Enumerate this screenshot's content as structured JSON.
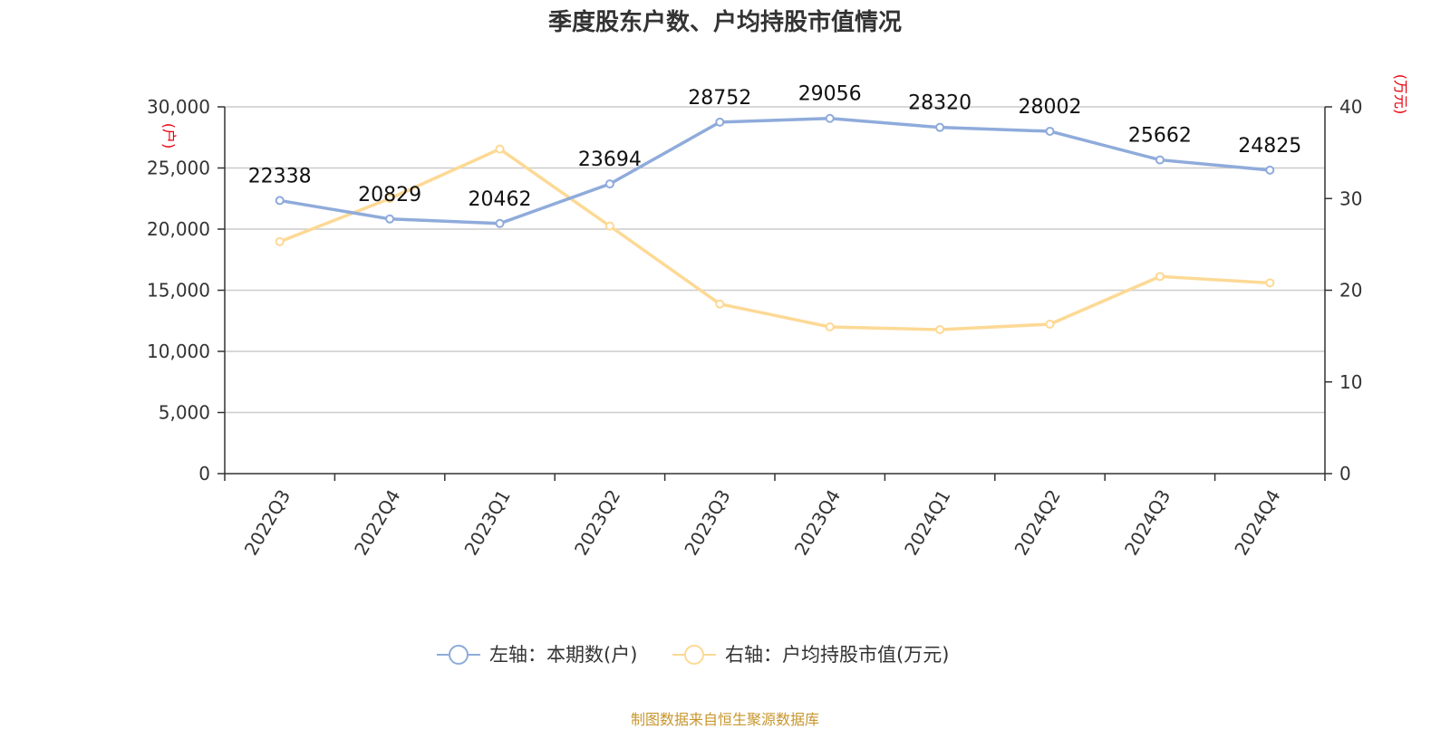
{
  "title": "季度股东户数、户均持股市值情况",
  "source": "制图数据来自恒生聚源数据库",
  "colors": {
    "left_series": "#8fabdb",
    "right_series": "#fdd995",
    "unit": "#e8000b",
    "source": "#c8962e"
  },
  "chart_data": {
    "type": "line",
    "categories": [
      "2022Q3",
      "2022Q4",
      "2023Q1",
      "2023Q2",
      "2023Q3",
      "2023Q4",
      "2024Q1",
      "2024Q2",
      "2024Q3",
      "2024Q4"
    ],
    "series": [
      {
        "name": "左轴：本期数(户)",
        "axis": "left",
        "values": [
          22338,
          20829,
          20462,
          23694,
          28752,
          29056,
          28320,
          28002,
          25662,
          24825
        ],
        "labels": [
          "22338",
          "20829",
          "20462",
          "23694",
          "28752",
          "29056",
          "28320",
          "28002",
          "25662",
          "24825"
        ]
      },
      {
        "name": "右轴：户均持股市值(万元)",
        "axis": "right",
        "values": [
          25.3,
          30.0,
          35.4,
          27.0,
          18.5,
          16.0,
          15.7,
          16.3,
          21.5,
          20.8
        ]
      }
    ],
    "left_axis": {
      "unit": "(户)",
      "ylim": [
        0,
        30000
      ],
      "ticks": [
        0,
        5000,
        10000,
        15000,
        20000,
        25000,
        30000
      ],
      "tick_labels": [
        "0",
        "5,000",
        "10,000",
        "15,000",
        "20,000",
        "25,000",
        "30,000"
      ]
    },
    "right_axis": {
      "unit": "(万元)",
      "ylim": [
        0,
        40
      ],
      "ticks": [
        0,
        10,
        20,
        30,
        40
      ],
      "tick_labels": [
        "0",
        "10",
        "20",
        "30",
        "40"
      ]
    },
    "grid": true,
    "legend": "bottom-center"
  }
}
